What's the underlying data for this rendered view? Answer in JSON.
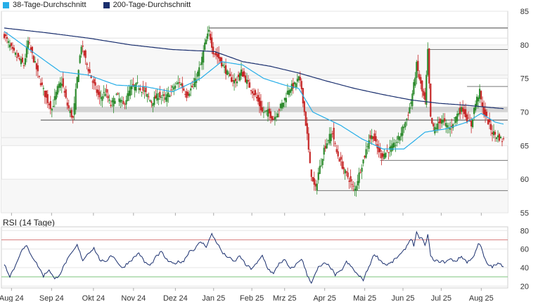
{
  "legend": [
    {
      "label": "38-Tage-Durchschnitt",
      "color": "#27aee8"
    },
    {
      "label": "200-Tage-Durchschnitt",
      "color": "#1a2f6e"
    }
  ],
  "rsi_title": "RSI (14 Tage)",
  "colors": {
    "up": "#2e8b2e",
    "down": "#c62828",
    "ma38": "#27aee8",
    "ma200": "#1a2f6e",
    "rsi": "#1a2f6e",
    "rsi_upper": "#d98080",
    "rsi_lower": "#7cc47c",
    "zone": "#d4d4d4",
    "grid": "#e6e6e6"
  },
  "chart_data": [
    {
      "type": "candlestick",
      "title": "",
      "x_labels": [
        "Aug 24",
        "Sep 24",
        "Okt 24",
        "Nov 24",
        "Dez 24",
        "Jan 25",
        "Feb 25",
        "Mrz 25",
        "Apr 25",
        "Mai 25",
        "Jun 25",
        "Jul 25",
        "Aug 25"
      ],
      "y_ticks": [
        55,
        60,
        65,
        70,
        75,
        80,
        85
      ],
      "ylim": [
        55,
        85
      ],
      "grid": true,
      "ohlc_keypoints_close": [
        [
          0,
          81.5
        ],
        [
          6,
          79
        ],
        [
          10,
          78
        ],
        [
          14,
          77
        ],
        [
          17,
          80.5
        ],
        [
          20,
          78.5
        ],
        [
          25,
          75
        ],
        [
          30,
          72
        ],
        [
          34,
          70.5
        ],
        [
          38,
          73.5
        ],
        [
          41,
          74.5
        ],
        [
          45,
          71
        ],
        [
          49,
          69
        ],
        [
          52,
          75
        ],
        [
          55,
          80
        ],
        [
          59,
          77
        ],
        [
          63,
          74.5
        ],
        [
          68,
          72
        ],
        [
          72,
          73
        ],
        [
          76,
          71
        ],
        [
          80,
          72.5
        ],
        [
          85,
          71
        ],
        [
          90,
          73.5
        ],
        [
          95,
          74
        ],
        [
          100,
          73
        ],
        [
          105,
          71.5
        ],
        [
          110,
          72.5
        ],
        [
          115,
          72
        ],
        [
          120,
          73.5
        ],
        [
          125,
          74.5
        ],
        [
          130,
          72.5
        ],
        [
          135,
          74
        ],
        [
          140,
          77
        ],
        [
          143,
          80
        ],
        [
          146,
          82
        ],
        [
          149,
          79
        ],
        [
          153,
          78
        ],
        [
          157,
          76.5
        ],
        [
          161,
          75
        ],
        [
          165,
          74.5
        ],
        [
          169,
          76
        ],
        [
          173,
          74.5
        ],
        [
          176,
          73.5
        ],
        [
          180,
          72
        ],
        [
          184,
          70
        ],
        [
          188,
          70
        ],
        [
          192,
          69
        ],
        [
          196,
          70.5
        ],
        [
          199,
          71.5
        ],
        [
          203,
          73.5
        ],
        [
          207,
          74
        ],
        [
          210,
          75
        ],
        [
          212,
          73.5
        ],
        [
          214,
          70
        ],
        [
          216,
          66.5
        ],
        [
          218,
          62
        ],
        [
          220,
          59.5
        ],
        [
          222,
          58.5
        ],
        [
          224,
          61
        ],
        [
          226,
          62.5
        ],
        [
          228,
          64.5
        ],
        [
          231,
          66
        ],
        [
          234,
          67
        ],
        [
          237,
          64
        ],
        [
          240,
          62.5
        ],
        [
          243,
          61
        ],
        [
          246,
          60
        ],
        [
          248,
          59
        ],
        [
          250,
          58.5
        ],
        [
          252,
          60
        ],
        [
          254,
          61.5
        ],
        [
          257,
          63.5
        ],
        [
          260,
          66
        ],
        [
          263,
          66.5
        ],
        [
          266,
          64.5
        ],
        [
          269,
          63.5
        ],
        [
          272,
          64
        ],
        [
          275,
          64.5
        ],
        [
          278,
          65
        ],
        [
          281,
          66
        ],
        [
          284,
          67.5
        ],
        [
          287,
          69
        ],
        [
          290,
          71.5
        ],
        [
          292,
          74
        ],
        [
          294,
          77
        ],
        [
          296,
          75
        ],
        [
          298,
          73
        ],
        [
          300,
          71.5
        ],
        [
          302,
          79
        ],
        [
          304,
          69
        ],
        [
          306,
          67.5
        ],
        [
          309,
          68
        ],
        [
          312,
          69
        ],
        [
          315,
          68
        ],
        [
          318,
          67.5
        ],
        [
          321,
          69
        ],
        [
          324,
          70
        ],
        [
          327,
          70.5
        ],
        [
          330,
          69
        ],
        [
          333,
          68
        ],
        [
          335,
          70.5
        ],
        [
          337,
          72
        ],
        [
          339,
          73
        ],
        [
          341,
          70.5
        ],
        [
          343,
          69.5
        ],
        [
          345,
          68.5
        ],
        [
          348,
          67
        ],
        [
          351,
          66.5
        ],
        [
          354,
          66
        ],
        [
          356,
          65.8
        ]
      ],
      "moving_averages": [
        {
          "name": "38-Tage-Durchschnitt",
          "keypoints": [
            [
              0,
              82
            ],
            [
              20,
              79
            ],
            [
              40,
              76
            ],
            [
              60,
              75.5
            ],
            [
              80,
              74
            ],
            [
              100,
              73.8
            ],
            [
              120,
              73
            ],
            [
              140,
              75
            ],
            [
              155,
              77.5
            ],
            [
              170,
              77
            ],
            [
              185,
              75
            ],
            [
              200,
              74
            ],
            [
              210,
              73.5
            ],
            [
              220,
              70
            ],
            [
              240,
              68
            ],
            [
              255,
              66
            ],
            [
              270,
              64.5
            ],
            [
              285,
              64.5
            ],
            [
              300,
              67
            ],
            [
              315,
              67.5
            ],
            [
              330,
              68.5
            ],
            [
              340,
              69.8
            ],
            [
              350,
              68.5
            ],
            [
              356,
              68.2
            ]
          ]
        },
        {
          "name": "200-Tage-Durchschnitt",
          "keypoints": [
            [
              0,
              82.5
            ],
            [
              30,
              81.8
            ],
            [
              60,
              81
            ],
            [
              90,
              80
            ],
            [
              120,
              79.3
            ],
            [
              150,
              79
            ],
            [
              170,
              77.5
            ],
            [
              190,
              76.8
            ],
            [
              210,
              75.8
            ],
            [
              230,
              74.6
            ],
            [
              250,
              73.5
            ],
            [
              270,
              72.6
            ],
            [
              290,
              71.8
            ],
            [
              310,
              71.3
            ],
            [
              330,
              71
            ],
            [
              356,
              70.5
            ]
          ]
        }
      ],
      "horizontal_levels": [
        82.5,
        79.3,
        73.8,
        68.8,
        62.8,
        58.3
      ],
      "support_zone": [
        70,
        70.8
      ]
    },
    {
      "type": "line",
      "title": "RSI (14 Tage)",
      "series": [
        {
          "name": "",
          "keypoints": [
            [
              0,
              44
            ],
            [
              4,
              31
            ],
            [
              8,
              42
            ],
            [
              12,
              58
            ],
            [
              16,
              63
            ],
            [
              20,
              52
            ],
            [
              24,
              42
            ],
            [
              28,
              31
            ],
            [
              32,
              38
            ],
            [
              36,
              27
            ],
            [
              40,
              34
            ],
            [
              44,
              46
            ],
            [
              48,
              55
            ],
            [
              52,
              64
            ],
            [
              56,
              48
            ],
            [
              60,
              56
            ],
            [
              64,
              61
            ],
            [
              68,
              49
            ],
            [
              72,
              45
            ],
            [
              76,
              54
            ],
            [
              80,
              48
            ],
            [
              84,
              39
            ],
            [
              88,
              45
            ],
            [
              92,
              50
            ],
            [
              96,
              56
            ],
            [
              100,
              46
            ],
            [
              104,
              42
            ],
            [
              108,
              51
            ],
            [
              112,
              57
            ],
            [
              116,
              48
            ],
            [
              120,
              44
            ],
            [
              124,
              46
            ],
            [
              128,
              47
            ],
            [
              132,
              58
            ],
            [
              136,
              60
            ],
            [
              140,
              68
            ],
            [
              144,
              63
            ],
            [
              148,
              76
            ],
            [
              152,
              66
            ],
            [
              156,
              55
            ],
            [
              160,
              51
            ],
            [
              164,
              46
            ],
            [
              168,
              53
            ],
            [
              172,
              43
            ],
            [
              176,
              39
            ],
            [
              180,
              44
            ],
            [
              184,
              53
            ],
            [
              188,
              39
            ],
            [
              192,
              33
            ],
            [
              196,
              45
            ],
            [
              200,
              48
            ],
            [
              204,
              38
            ],
            [
              208,
              43
            ],
            [
              212,
              50
            ],
            [
              216,
              32
            ],
            [
              219,
              24
            ],
            [
              221,
              30
            ],
            [
              224,
              40
            ],
            [
              228,
              44
            ],
            [
              232,
              42
            ],
            [
              236,
              32
            ],
            [
              240,
              36
            ],
            [
              244,
              46
            ],
            [
              248,
              40
            ],
            [
              252,
              32
            ],
            [
              256,
              27
            ],
            [
              260,
              41
            ],
            [
              264,
              55
            ],
            [
              268,
              48
            ],
            [
              272,
              43
            ],
            [
              276,
              45
            ],
            [
              280,
              51
            ],
            [
              284,
              56
            ],
            [
              288,
              66
            ],
            [
              290,
              72
            ],
            [
              292,
              64
            ],
            [
              294,
              78
            ],
            [
              296,
              70
            ],
            [
              298,
              73
            ],
            [
              300,
              63
            ],
            [
              302,
              75
            ],
            [
              304,
              54
            ],
            [
              306,
              47
            ],
            [
              310,
              47
            ],
            [
              314,
              46
            ],
            [
              318,
              49
            ],
            [
              322,
              47
            ],
            [
              326,
              52
            ],
            [
              330,
              46
            ],
            [
              334,
              50
            ],
            [
              338,
              66
            ],
            [
              340,
              62
            ],
            [
              342,
              52
            ],
            [
              344,
              44
            ],
            [
              348,
              41
            ],
            [
              352,
              44
            ],
            [
              356,
              42
            ]
          ]
        }
      ],
      "y_ticks": [
        20,
        40,
        60,
        80
      ],
      "ylim": [
        18,
        84
      ],
      "reference_lines": [
        70,
        30
      ],
      "grid": true
    }
  ]
}
